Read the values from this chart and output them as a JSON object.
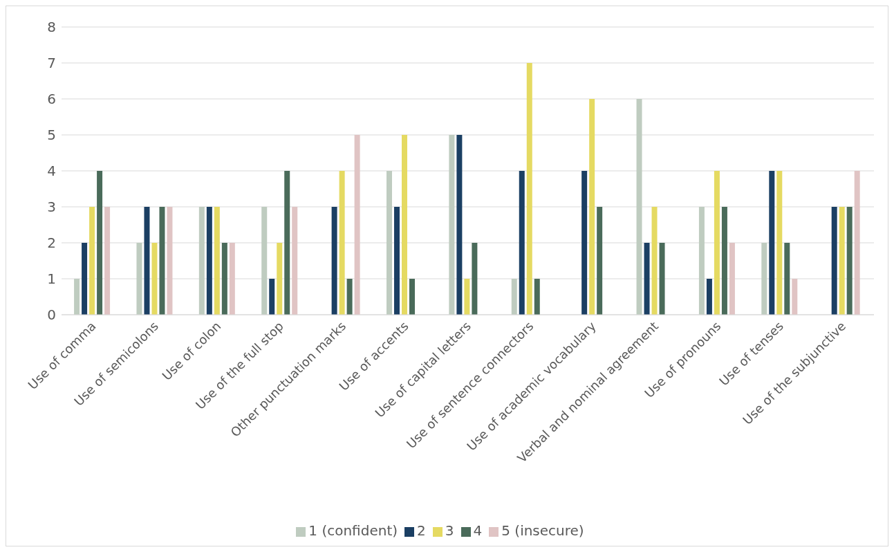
{
  "chart_data": {
    "type": "bar",
    "categories": [
      "Use of comma",
      "Use of semicolons",
      "Use of colon",
      "Use of the full stop",
      "Other punctuation marks",
      "Use of accents",
      "Use of capital letters",
      "Use of sentence connectors",
      "Use of academic vocabulary",
      "Verbal and nominal agreement",
      "Use of pronouns",
      "Use of tenses",
      "Use of the subjunctive"
    ],
    "series": [
      {
        "name": "1 (confident)",
        "color": "#bfccc0",
        "values": [
          1,
          2,
          3,
          3,
          0,
          4,
          5,
          1,
          0,
          6,
          3,
          2,
          0
        ]
      },
      {
        "name": "2",
        "color": "#1b3f63",
        "values": [
          2,
          3,
          3,
          1,
          3,
          3,
          5,
          4,
          4,
          2,
          1,
          4,
          3
        ]
      },
      {
        "name": "3",
        "color": "#e5da62",
        "values": [
          3,
          2,
          3,
          2,
          4,
          5,
          1,
          7,
          6,
          3,
          4,
          4,
          3
        ]
      },
      {
        "name": "4",
        "color": "#4a6b5a",
        "values": [
          4,
          3,
          2,
          4,
          1,
          1,
          2,
          1,
          3,
          2,
          3,
          2,
          3
        ]
      },
      {
        "name": "5 (insecure)",
        "color": "#e0c4c4",
        "values": [
          3,
          3,
          2,
          3,
          5,
          0,
          0,
          0,
          0,
          0,
          2,
          1,
          4
        ]
      }
    ],
    "ylim": [
      0,
      8
    ],
    "yticks": [
      0,
      1,
      2,
      3,
      4,
      5,
      6,
      7,
      8
    ],
    "grid": "y",
    "legend": "bottom"
  }
}
